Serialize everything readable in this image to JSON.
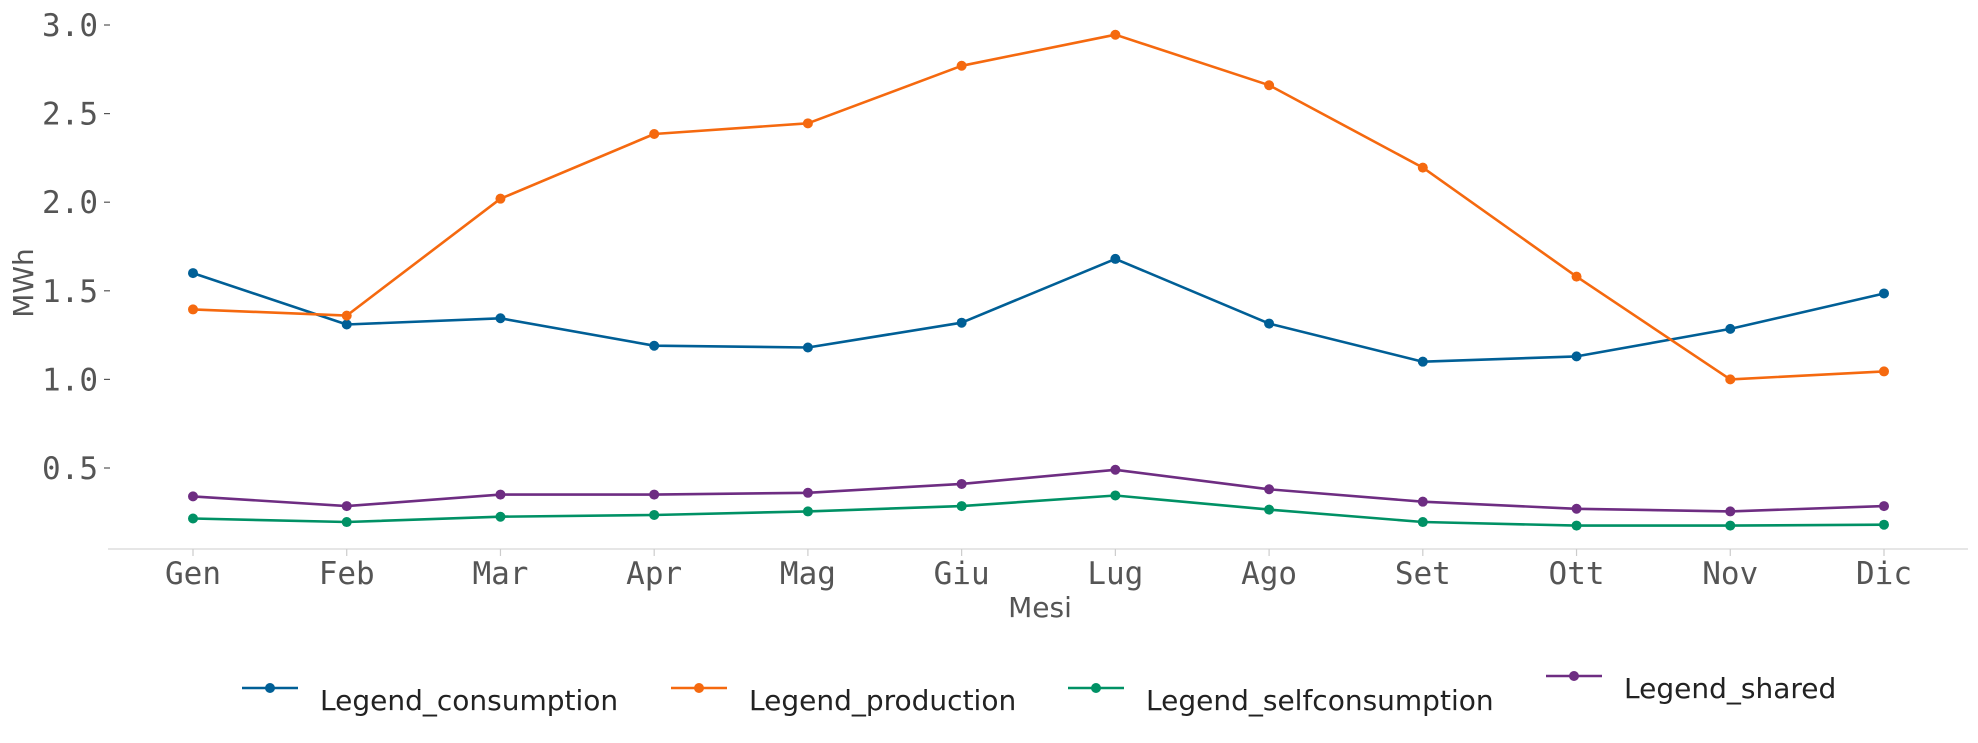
{
  "chart_data": {
    "type": "line",
    "xlabel": "Mesi",
    "ylabel": "MWh",
    "categories": [
      "Gen",
      "Feb",
      "Mar",
      "Apr",
      "Mag",
      "Giu",
      "Lug",
      "Ago",
      "Set",
      "Ott",
      "Nov",
      "Dic"
    ],
    "ylim": [
      0.03,
      3.05
    ],
    "yticks": [
      "0.5",
      "1.0",
      "1.5",
      "2.0",
      "2.5",
      "3.0"
    ],
    "grid": false,
    "legend_position": "bottom",
    "series": [
      {
        "name": "Legend_consumption",
        "color": "#005f96",
        "values": [
          1.6,
          1.31,
          1.345,
          1.19,
          1.18,
          1.32,
          1.68,
          1.315,
          1.1,
          1.13,
          1.285,
          1.485
        ]
      },
      {
        "name": "Legend_production",
        "color": "#f5690f",
        "values": [
          1.395,
          1.36,
          2.02,
          2.385,
          2.445,
          2.77,
          2.945,
          2.66,
          2.195,
          1.58,
          1.0,
          1.045
        ]
      },
      {
        "name": "Legend_selfconsumption",
        "color": "#009165",
        "values": [
          0.215,
          0.195,
          0.225,
          0.235,
          0.255,
          0.285,
          0.345,
          0.265,
          0.195,
          0.175,
          0.175,
          0.18
        ]
      },
      {
        "name": "Legend_shared",
        "color": "#6e2d82",
        "values": [
          0.34,
          0.285,
          0.35,
          0.35,
          0.36,
          0.41,
          0.49,
          0.38,
          0.31,
          0.27,
          0.255,
          0.285
        ]
      }
    ]
  }
}
